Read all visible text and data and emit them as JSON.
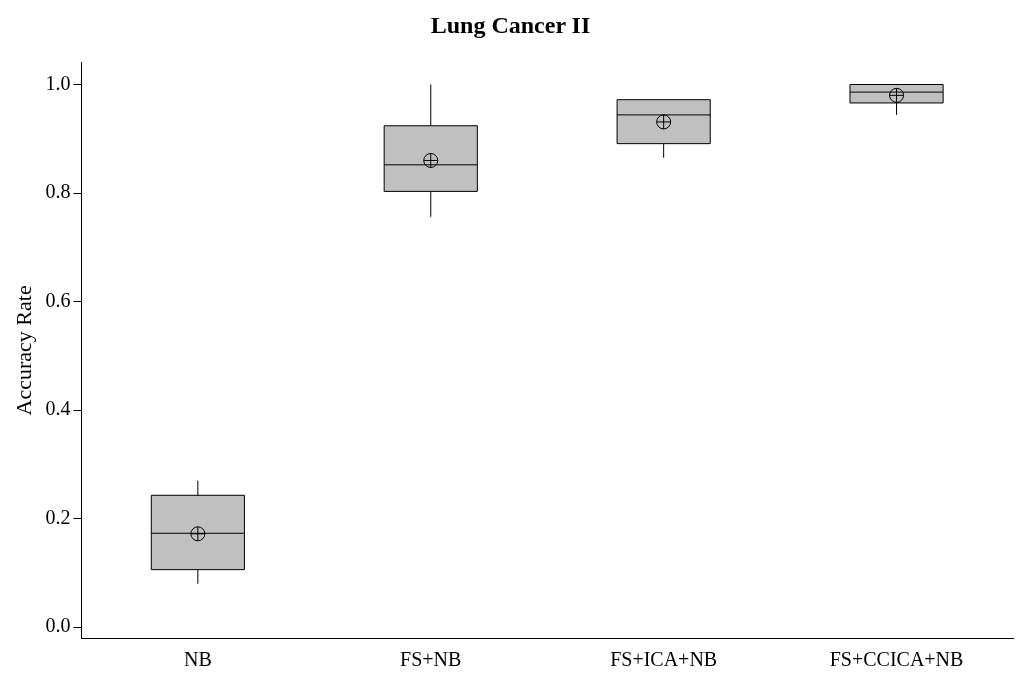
{
  "chart_data": {
    "type": "box",
    "title": "Lung Cancer II",
    "ylabel": "Accuracy Rate",
    "categories": [
      "NB",
      "FS+NB",
      "FS+ICA+NB",
      "FS+CCICA+NB"
    ],
    "color": "#c0c0c0",
    "boxes": [
      {
        "low": 0.08,
        "q1": 0.106,
        "median": 0.173,
        "q3": 0.243,
        "high": 0.27,
        "mean": 0.172
      },
      {
        "low": 0.756,
        "q1": 0.803,
        "median": 0.852,
        "q3": 0.924,
        "high": 1.0,
        "mean": 0.86
      },
      {
        "low": 0.865,
        "q1": 0.891,
        "median": 0.944,
        "q3": 0.972,
        "high": 0.972,
        "mean": 0.931
      },
      {
        "low": 0.944,
        "q1": 0.966,
        "median": 0.986,
        "q3": 1.0,
        "high": 1.0,
        "mean": 0.98
      }
    ],
    "ylim": [
      -0.02,
      1.04
    ],
    "yticks": [
      {
        "value": 0,
        "label": "0.0"
      },
      0.2,
      0.4,
      0.6,
      0.8,
      {
        "value": 1,
        "label": "1.0"
      }
    ],
    "grid": false,
    "legend": false
  }
}
